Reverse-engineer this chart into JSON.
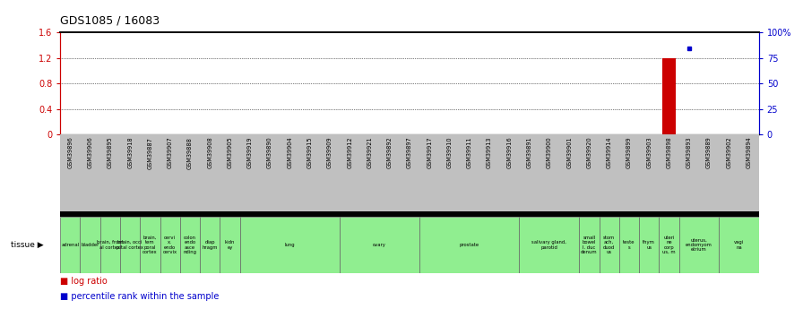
{
  "title": "GDS1085 / 16083",
  "samples": [
    "GSM39896",
    "GSM39906",
    "GSM39895",
    "GSM39918",
    "GSM39887",
    "GSM39907",
    "GSM39888",
    "GSM39908",
    "GSM39905",
    "GSM39919",
    "GSM39890",
    "GSM39904",
    "GSM39915",
    "GSM39909",
    "GSM39912",
    "GSM39921",
    "GSM39892",
    "GSM39897",
    "GSM39917",
    "GSM39910",
    "GSM39911",
    "GSM39913",
    "GSM39916",
    "GSM39891",
    "GSM39900",
    "GSM39901",
    "GSM39920",
    "GSM39914",
    "GSM39899",
    "GSM39903",
    "GSM39898",
    "GSM39893",
    "GSM39889",
    "GSM39902",
    "GSM39894"
  ],
  "log_ratios": [
    0,
    0,
    0,
    0,
    0,
    0,
    0,
    0,
    0,
    0,
    0,
    0,
    0,
    0,
    0,
    0,
    0,
    0,
    0,
    0,
    0,
    0,
    0,
    0,
    0,
    0,
    0,
    0,
    0,
    0,
    1.2,
    0,
    0,
    0,
    0
  ],
  "percentile_ranks": [
    null,
    null,
    null,
    null,
    null,
    null,
    null,
    null,
    null,
    null,
    null,
    null,
    null,
    null,
    null,
    null,
    null,
    null,
    null,
    null,
    null,
    null,
    null,
    null,
    null,
    null,
    null,
    null,
    null,
    null,
    null,
    84,
    null,
    null,
    null
  ],
  "bar_color": "#cc0000",
  "dot_color": "#0000cc",
  "ylim_left": [
    0,
    1.6
  ],
  "ylim_right": [
    0,
    100
  ],
  "yticks_left": [
    0,
    0.4,
    0.8,
    1.2,
    1.6
  ],
  "yticks_right": [
    0,
    25,
    50,
    75,
    100
  ],
  "ytick_labels_left": [
    "0",
    "0.4",
    "0.8",
    "1.2",
    "1.6"
  ],
  "ytick_labels_right": [
    "0",
    "25",
    "50",
    "75",
    "100%"
  ],
  "tissue_groups": [
    {
      "label": "adrenal",
      "start": 0,
      "end": 1
    },
    {
      "label": "bladder",
      "start": 1,
      "end": 2
    },
    {
      "label": "brain, front\nal cortex",
      "start": 2,
      "end": 3
    },
    {
      "label": "brain, occi\npital cortex",
      "start": 3,
      "end": 4
    },
    {
      "label": "brain,\ntem\nporal\ncortex",
      "start": 4,
      "end": 5
    },
    {
      "label": "cervi\nx,\nendo\ncervix",
      "start": 5,
      "end": 6
    },
    {
      "label": "colon\nendo\nasce\nnding",
      "start": 6,
      "end": 7
    },
    {
      "label": "diap\nhragm",
      "start": 7,
      "end": 8
    },
    {
      "label": "kidn\ney",
      "start": 8,
      "end": 9
    },
    {
      "label": "lung",
      "start": 9,
      "end": 14
    },
    {
      "label": "ovary",
      "start": 14,
      "end": 18
    },
    {
      "label": "prostate",
      "start": 18,
      "end": 23
    },
    {
      "label": "salivary gland,\nparotid",
      "start": 23,
      "end": 26
    },
    {
      "label": "small\nbowel\nI. duc\ndenum",
      "start": 26,
      "end": 27
    },
    {
      "label": "stom\nach,\nduod\nus",
      "start": 27,
      "end": 28
    },
    {
      "label": "teste\ns",
      "start": 28,
      "end": 29
    },
    {
      "label": "thym\nus",
      "start": 29,
      "end": 30
    },
    {
      "label": "uteri\nne\ncorp\nus, m",
      "start": 30,
      "end": 31
    },
    {
      "label": "uterus,\nendomyom\netrium",
      "start": 31,
      "end": 33
    },
    {
      "label": "vagi\nna",
      "start": 33,
      "end": 35
    }
  ],
  "legend_log_ratio": "log ratio",
  "legend_percentile": "percentile rank within the sample",
  "tissue_label": "tissue",
  "green_color": "#90ee90",
  "gray_color": "#c0c0c0",
  "bar_color_left": "#cc0000",
  "bar_color_right": "#0000cc"
}
